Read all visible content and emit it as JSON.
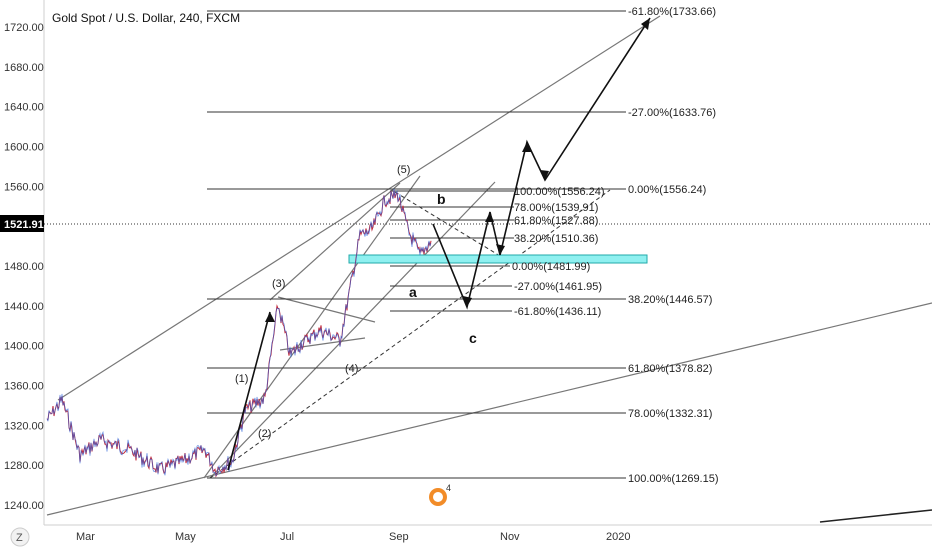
{
  "header": {
    "title": "Gold Spot / U.S. Dollar, 240, FXCM"
  },
  "price_axis": {
    "labels": [
      "1720.00",
      "1680.00",
      "1640.00",
      "1600.00",
      "1560.00",
      "1480.00",
      "1440.00",
      "1400.00",
      "1360.00",
      "1320.00",
      "1280.00",
      "1240.00"
    ],
    "current_price": "1521.91",
    "current_price_color": "#000000"
  },
  "time_axis": {
    "labels": [
      "Mar",
      "May",
      "Jul",
      "Sep",
      "Nov",
      "2020"
    ]
  },
  "footer": {
    "zoom_button": "Z"
  },
  "colors": {
    "up_candle": "#2e7df6",
    "down_candle": "#e5343b",
    "zone": "#8ff0f0",
    "lines": "#555555"
  },
  "chart_data": {
    "type": "line",
    "title": "Gold Spot / U.S. Dollar, 240, FXCM",
    "ylim": [
      1232,
      1742
    ],
    "x_labels": [
      "Mar",
      "May",
      "Jul",
      "Sep",
      "Nov",
      "2020"
    ],
    "series": [
      {
        "x": [
          "Feb",
          "Feb",
          "Mar",
          "Mar",
          "Mar",
          "Apr",
          "Apr",
          "May",
          "May",
          "Jun",
          "Jun",
          "Jul",
          "Jul",
          "Aug",
          "Aug",
          "Aug",
          "Sep",
          "Sep"
        ],
        "values": [
          1322,
          1346,
          1295,
          1290,
          1300,
          1278,
          1275,
          1282,
          1272,
          1345,
          1438,
          1400,
          1420,
          1410,
          1400,
          1500,
          1556,
          1490
        ]
      }
    ],
    "fib_levels": [
      {
        "label": "-61.80%(1733.66)",
        "value": 1733.66
      },
      {
        "label": "-27.00%(1633.76)",
        "value": 1633.76
      },
      {
        "label": "0.00%(1556.24)",
        "value": 1556.24
      },
      {
        "label": "38.20%(1446.57)",
        "value": 1446.57
      },
      {
        "label": "61.80%(1378.82)",
        "value": 1378.82
      },
      {
        "label": "78.00%(1332.31)",
        "value": 1332.31
      },
      {
        "label": "100.00%(1269.15)",
        "value": 1269.15
      },
      {
        "label": "100.00%(1556.24)",
        "value": 1556.24
      },
      {
        "label": "78.00%(1539.91)",
        "value": 1539.91
      },
      {
        "label": "61.80%(1527.88)",
        "value": 1527.88
      },
      {
        "label": "38.20%(1510.36)",
        "value": 1510.36
      },
      {
        "label": "0.00%(1481.99)",
        "value": 1481.99
      },
      {
        "label": "-27.00%(1461.95)",
        "value": 1461.95
      },
      {
        "label": "-61.80%(1436.11)",
        "value": 1436.11
      }
    ],
    "wave_labels": [
      "(1)",
      "(2)",
      "(3)",
      "(4)",
      "(5)",
      "a",
      "b",
      "c"
    ]
  }
}
